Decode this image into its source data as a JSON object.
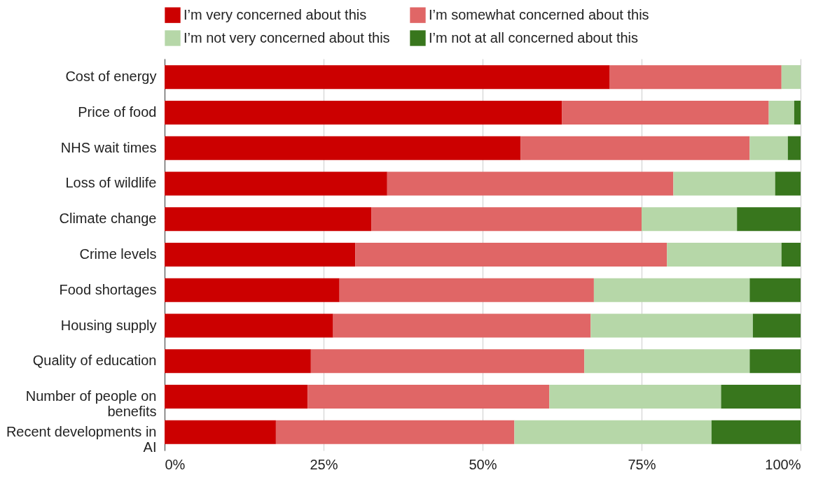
{
  "chart_data": {
    "type": "bar",
    "orientation": "horizontal",
    "stacked": true,
    "categories": [
      "Cost of energy",
      "Price of food",
      "NHS wait times",
      "Loss of wildlife",
      "Climate change",
      "Crime levels",
      "Food shortages",
      "Housing supply",
      "Quality of education",
      "Number of people on benefits",
      "Recent developments in AI"
    ],
    "series": [
      {
        "name": "I’m very concerned about this",
        "color": "#cc0000",
        "values": [
          70,
          62.5,
          56,
          35,
          32.5,
          30,
          27.5,
          26.5,
          23,
          22.5,
          17.5
        ]
      },
      {
        "name": "I’m somewhat concerned about this",
        "color": "#e06666",
        "values": [
          27,
          32.5,
          36,
          45,
          42.5,
          49,
          40,
          40.5,
          43,
          38,
          37.5
        ]
      },
      {
        "name": "I’m not very concerned about this",
        "color": "#b6d7a8",
        "values": [
          3,
          4,
          6,
          16,
          15,
          18,
          24.5,
          25.5,
          26,
          27,
          31
        ]
      },
      {
        "name": "I’m not at all concerned about this",
        "color": "#38761d",
        "values": [
          0,
          1,
          2,
          4,
          10,
          3,
          8,
          7.5,
          8,
          12.5,
          14
        ]
      }
    ],
    "xlim": [
      0,
      100
    ],
    "xticks": [
      {
        "value": 0,
        "label": "0%"
      },
      {
        "value": 25,
        "label": "25%"
      },
      {
        "value": 50,
        "label": "50%"
      },
      {
        "value": 75,
        "label": "75%"
      },
      {
        "value": 100,
        "label": "100%"
      }
    ],
    "grid": "x",
    "legend": "top"
  }
}
